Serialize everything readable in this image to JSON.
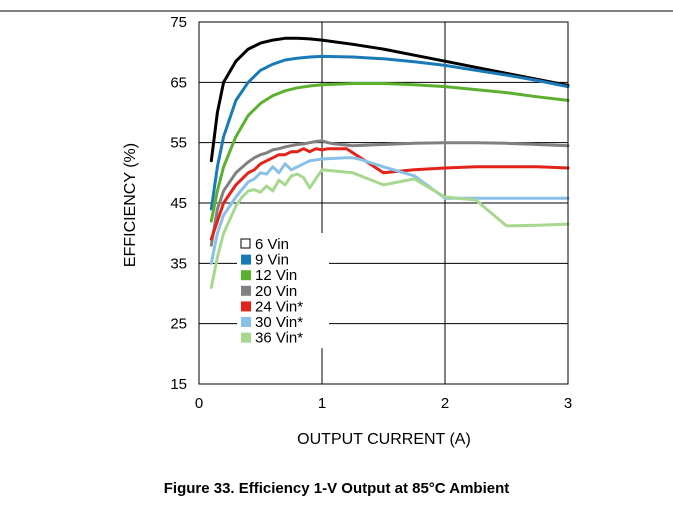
{
  "caption": "Figure 33. Efficiency 1-V Output at 85°C Ambient",
  "chart_data": {
    "type": "line",
    "xlabel": "OUTPUT CURRENT (A)",
    "ylabel": "EFFICIENCY (%)",
    "xlim": [
      0,
      3
    ],
    "ylim": [
      15,
      75
    ],
    "xticks": [
      0,
      1,
      2,
      3
    ],
    "yticks": [
      15,
      25,
      35,
      45,
      55,
      65,
      75
    ],
    "grid": true,
    "legend_position": "lower-left",
    "series": [
      {
        "name": "6 Vin",
        "color": "#000000",
        "marker": "open-square",
        "x": [
          0.1,
          0.15,
          0.2,
          0.3,
          0.4,
          0.5,
          0.6,
          0.7,
          0.8,
          0.9,
          1.0,
          1.25,
          1.5,
          1.75,
          2.0,
          2.25,
          2.5,
          2.75,
          3.0
        ],
        "y": [
          52,
          60,
          65,
          68.5,
          70.5,
          71.5,
          72,
          72.3,
          72.3,
          72.2,
          72,
          71.3,
          70.5,
          69.5,
          68.5,
          67.5,
          66.5,
          65.5,
          64.5
        ]
      },
      {
        "name": "9 Vin",
        "color": "#1a7ab8",
        "x": [
          0.1,
          0.15,
          0.2,
          0.3,
          0.4,
          0.5,
          0.6,
          0.7,
          0.8,
          0.9,
          1.0,
          1.25,
          1.5,
          1.75,
          2.0,
          2.25,
          2.5,
          2.75,
          3.0
        ],
        "y": [
          44,
          51,
          56,
          62,
          65,
          67,
          68,
          68.7,
          69,
          69.2,
          69.3,
          69.2,
          68.9,
          68.4,
          67.8,
          67,
          66.2,
          65.3,
          64.3
        ]
      },
      {
        "name": "12 Vin",
        "color": "#5cb030",
        "x": [
          0.1,
          0.15,
          0.2,
          0.3,
          0.4,
          0.5,
          0.6,
          0.7,
          0.8,
          0.9,
          1.0,
          1.25,
          1.5,
          1.75,
          2.0,
          2.25,
          2.5,
          2.75,
          3.0
        ],
        "y": [
          42,
          47,
          51,
          56,
          59.5,
          61.5,
          62.8,
          63.6,
          64.1,
          64.4,
          64.6,
          64.8,
          64.8,
          64.6,
          64.3,
          63.8,
          63.3,
          62.6,
          62
        ]
      },
      {
        "name": "20 Vin",
        "color": "#808080",
        "x": [
          0.1,
          0.15,
          0.2,
          0.3,
          0.4,
          0.45,
          0.5,
          0.55,
          0.6,
          0.65,
          0.7,
          0.75,
          0.8,
          0.85,
          0.9,
          0.95,
          1.0,
          1.05,
          1.1,
          1.25,
          1.5,
          1.75,
          2.0,
          2.25,
          2.5,
          2.75,
          3.0
        ],
        "y": [
          38,
          44,
          47,
          50,
          51.8,
          52.5,
          53,
          53.3,
          53.8,
          54,
          54.3,
          54.5,
          54.7,
          54.8,
          55,
          55.2,
          55.3,
          55,
          54.8,
          54.5,
          54.7,
          54.9,
          55,
          55,
          54.9,
          54.7,
          54.5
        ]
      },
      {
        "name": "24 Vin*",
        "color": "#e2231a",
        "x": [
          0.1,
          0.15,
          0.2,
          0.3,
          0.4,
          0.45,
          0.5,
          0.55,
          0.6,
          0.65,
          0.7,
          0.75,
          0.8,
          0.85,
          0.9,
          0.95,
          1.0,
          1.05,
          1.1,
          1.2,
          1.35,
          1.5,
          1.75,
          2.0,
          2.25,
          2.5,
          2.75,
          3.0
        ],
        "y": [
          39,
          42,
          45,
          48,
          50,
          50.5,
          51.5,
          52,
          52.5,
          53,
          53,
          53.5,
          53.5,
          54,
          53.5,
          54,
          53.8,
          54,
          54,
          54,
          52,
          50,
          50.5,
          50.8,
          51,
          51,
          51,
          50.8
        ]
      },
      {
        "name": "30 Vin*",
        "color": "#88c0e8",
        "x": [
          0.1,
          0.15,
          0.2,
          0.3,
          0.4,
          0.45,
          0.5,
          0.55,
          0.6,
          0.65,
          0.7,
          0.75,
          0.8,
          0.9,
          1.0,
          1.1,
          1.2,
          1.25,
          1.3,
          1.5,
          1.75,
          2.0,
          2.25,
          2.5,
          2.75,
          3.0
        ],
        "y": [
          35,
          40,
          43,
          46,
          48.5,
          49,
          50,
          49.8,
          51,
          50,
          51.5,
          50.5,
          51,
          52,
          52.3,
          52.4,
          52.5,
          52.5,
          52.3,
          51,
          49.5,
          45.8,
          45.8,
          45.8,
          45.8,
          45.8
        ]
      },
      {
        "name": "36 Vin*",
        "color": "#a8d890",
        "x": [
          0.1,
          0.15,
          0.2,
          0.3,
          0.35,
          0.4,
          0.45,
          0.5,
          0.55,
          0.6,
          0.65,
          0.7,
          0.75,
          0.8,
          0.85,
          0.9,
          1.0,
          1.1,
          1.25,
          1.5,
          1.75,
          2.0,
          2.25,
          2.5,
          2.75,
          3.0
        ],
        "y": [
          31,
          36,
          40,
          44.5,
          46,
          47,
          47.2,
          46.8,
          47.8,
          47,
          48.8,
          48,
          49.5,
          49.8,
          49.2,
          47.5,
          50.5,
          50.3,
          50,
          48,
          49,
          46,
          45.5,
          41.2,
          41.3,
          41.5
        ]
      }
    ]
  }
}
